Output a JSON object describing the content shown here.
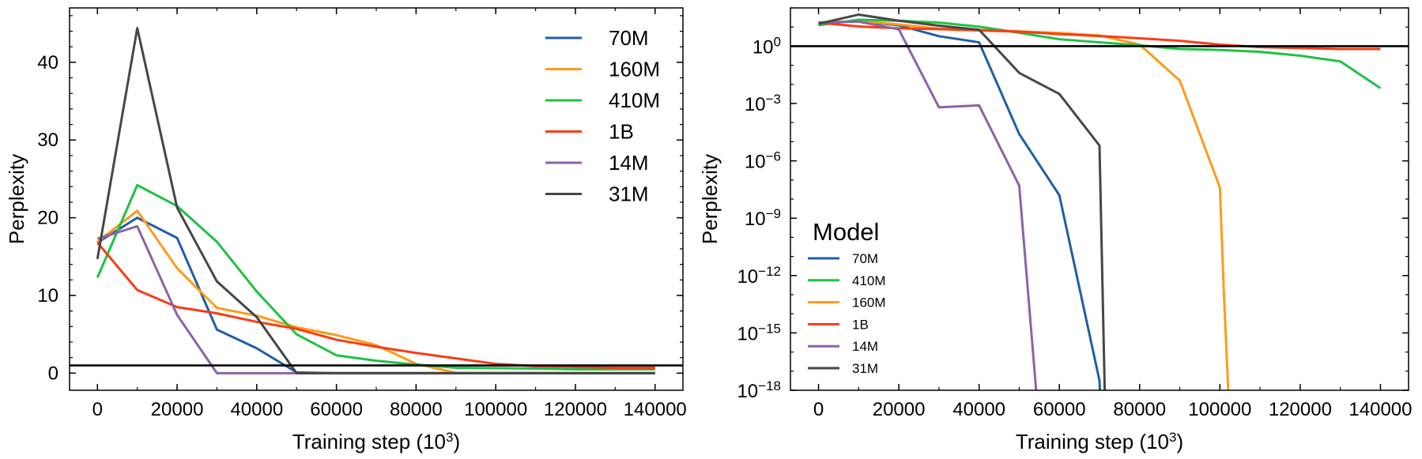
{
  "colors": {
    "70M": "#1f5ea8",
    "160M": "#fd9b1b",
    "410M": "#1ec146",
    "1B": "#fa3c13",
    "14M": "#8c62a9",
    "31M": "#464646"
  },
  "xlabel_base": "Training step (10",
  "xlabel_exp": "3",
  "xlabel_close": ")",
  "chart_data": [
    {
      "type": "line",
      "name": "linear-perplexity",
      "xlabel": "Training step (10^3)",
      "ylabel": "Perplexity",
      "xlim": [
        -7000,
        147000
      ],
      "ylim": [
        -2.2,
        47.0
      ],
      "xticks": [
        0,
        20000,
        40000,
        60000,
        80000,
        100000,
        120000,
        140000
      ],
      "yticks": [
        0,
        10,
        20,
        30,
        40
      ],
      "xminor": 10000,
      "yminor": 2,
      "hline": 1.0,
      "legend_style": "big",
      "legend": [
        "70M",
        "160M",
        "410M",
        "1B",
        "14M",
        "31M"
      ],
      "series": [
        {
          "name": "70M",
          "x": [
            0,
            10000,
            20000,
            30000,
            40000,
            50000,
            60000,
            70000,
            80000,
            90000,
            100000,
            110000,
            120000,
            130000,
            140000
          ],
          "values": [
            16.8,
            20.0,
            17.4,
            5.6,
            3.2,
            0.1,
            0.0,
            0.0,
            0.0,
            0.0,
            0.0,
            0.0,
            0.0,
            0.0,
            0.0
          ]
        },
        {
          "name": "160M",
          "x": [
            0,
            10000,
            20000,
            30000,
            40000,
            50000,
            60000,
            70000,
            80000,
            90000,
            100000,
            110000,
            120000,
            130000,
            140000
          ],
          "values": [
            16.9,
            20.9,
            13.5,
            8.4,
            7.4,
            5.9,
            4.9,
            3.6,
            1.2,
            0.05,
            0.03,
            0.02,
            0.02,
            0.01,
            0.01
          ]
        },
        {
          "name": "410M",
          "x": [
            0,
            10000,
            20000,
            30000,
            40000,
            50000,
            60000,
            70000,
            80000,
            90000,
            100000,
            110000,
            120000,
            130000,
            140000
          ],
          "values": [
            12.3,
            24.2,
            21.5,
            16.9,
            10.5,
            5.0,
            2.3,
            1.6,
            1.1,
            0.7,
            0.65,
            0.6,
            0.5,
            0.5,
            0.5
          ]
        },
        {
          "name": "1B",
          "x": [
            0,
            10000,
            20000,
            30000,
            40000,
            50000,
            60000,
            70000,
            80000,
            90000,
            100000,
            110000,
            120000,
            130000,
            140000
          ],
          "values": [
            16.8,
            10.7,
            8.5,
            7.7,
            6.6,
            5.7,
            4.3,
            3.4,
            2.6,
            1.9,
            1.2,
            0.9,
            0.8,
            0.7,
            0.7
          ]
        },
        {
          "name": "14M",
          "x": [
            0,
            10000,
            20000,
            30000,
            40000,
            50000,
            60000,
            70000,
            80000,
            90000,
            100000,
            110000,
            120000,
            130000,
            140000
          ],
          "values": [
            17.3,
            18.9,
            7.5,
            0.0,
            0.0,
            0.0,
            0.0,
            0.0,
            0.0,
            0.0,
            0.0,
            0.0,
            0.0,
            0.0,
            0.0
          ]
        },
        {
          "name": "31M",
          "x": [
            0,
            10000,
            20000,
            30000,
            40000,
            50000,
            60000,
            70000,
            80000,
            90000,
            100000,
            110000,
            120000,
            130000,
            140000
          ],
          "values": [
            14.7,
            44.4,
            21.3,
            11.8,
            7.2,
            0.0,
            0.0,
            0.0,
            0.0,
            0.0,
            0.0,
            0.0,
            0.0,
            0.0,
            0.0
          ]
        }
      ]
    },
    {
      "type": "line",
      "name": "log-perplexity",
      "scale": "log",
      "xlabel": "Training step (10^3)",
      "ylabel": "Perplexity",
      "xlim": [
        -7000,
        147000
      ],
      "ylim": [
        -18,
        2.0
      ],
      "xticks": [
        0,
        20000,
        40000,
        60000,
        80000,
        100000,
        120000,
        140000
      ],
      "yticks": [
        0,
        -3,
        -6,
        -9,
        -12,
        -15,
        -18
      ],
      "xminor": 10000,
      "hline": 0,
      "legend_style": "small",
      "legend_title": "Model",
      "legend": [
        "70M",
        "410M",
        "160M",
        "1B",
        "14M",
        "31M"
      ],
      "series": [
        {
          "name": "70M",
          "x": [
            0,
            10000,
            20000,
            30000,
            40000,
            50000,
            60000,
            70000,
            70500
          ],
          "log10_values": [
            1.23,
            1.3,
            1.09,
            0.52,
            0.2,
            -4.6,
            -7.8,
            -17.5,
            -20
          ]
        },
        {
          "name": "160M",
          "x": [
            0,
            10000,
            20000,
            30000,
            40000,
            50000,
            60000,
            70000,
            80000,
            90000,
            100000,
            101000,
            102500
          ],
          "log10_values": [
            1.22,
            1.32,
            1.13,
            0.92,
            0.86,
            0.77,
            0.69,
            0.56,
            0.08,
            -1.8,
            -7.4,
            -13,
            -20
          ]
        },
        {
          "name": "410M",
          "x": [
            0,
            10000,
            20000,
            30000,
            40000,
            50000,
            60000,
            70000,
            80000,
            90000,
            100000,
            110000,
            120000,
            130000,
            140000
          ],
          "log10_values": [
            1.09,
            1.38,
            1.33,
            1.23,
            1.02,
            0.7,
            0.36,
            0.2,
            0.04,
            -0.15,
            -0.2,
            -0.3,
            -0.5,
            -0.8,
            -2.2
          ]
        },
        {
          "name": "1B",
          "x": [
            0,
            10000,
            20000,
            30000,
            40000,
            50000,
            60000,
            70000,
            80000,
            90000,
            100000,
            110000,
            120000,
            130000,
            140000
          ],
          "log10_values": [
            1.23,
            1.03,
            0.93,
            0.89,
            0.82,
            0.76,
            0.63,
            0.53,
            0.41,
            0.28,
            0.08,
            -0.05,
            -0.1,
            -0.15,
            -0.15
          ]
        },
        {
          "name": "14M",
          "x": [
            0,
            10000,
            20000,
            30000,
            40000,
            50000,
            55000
          ],
          "log10_values": [
            1.24,
            1.28,
            0.88,
            -3.2,
            -3.1,
            -7.3,
            -20
          ]
        },
        {
          "name": "31M",
          "x": [
            0,
            10000,
            20000,
            30000,
            40000,
            50000,
            60000,
            70000,
            71500
          ],
          "log10_values": [
            1.17,
            1.65,
            1.33,
            1.07,
            0.86,
            -1.4,
            -2.5,
            -5.2,
            -20
          ]
        }
      ]
    }
  ]
}
